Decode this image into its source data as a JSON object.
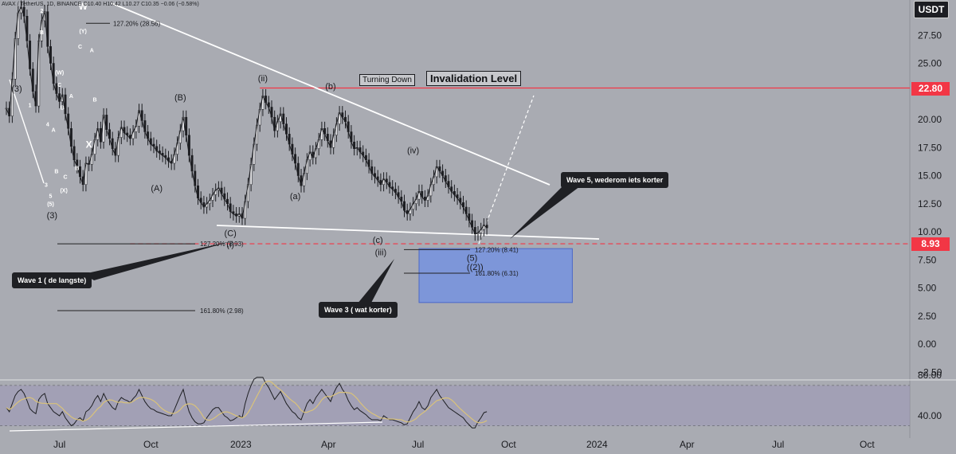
{
  "header": {
    "symbol_line": "AVAX / TetherUS, 1D, BINANCE  O10.40  H10.42  L10.27  C10.35  −0.06 (−0.58%)"
  },
  "currency_badge": "USDT",
  "colors": {
    "background": "#a9abb2",
    "price_line": "#1c1d21",
    "invalidation": "#f23645",
    "trendline": "#ffffff",
    "target_zone": "#6f8fe6",
    "rsi_line": "#1e1f23",
    "rsi_ma": "#d9c27a"
  },
  "annotations": {
    "turning_down": "Turning Down",
    "invalidation_level": "Invalidation Level",
    "wave1_callout": "Wave 1 ( de langste)",
    "wave3_callout": "Wave 3 ( wat korter)",
    "wave5_callout": "Wave 5, wederom iets korter",
    "fib_127_top": "127.20% (28.56)",
    "fib_127_left": "127.20% (8.93)",
    "fib_161_left": "161.80% (2.98)",
    "fib_127_right": "127.20% (8.41)",
    "fib_161_right": "161.80% (6.31)"
  },
  "price_badges": {
    "invalidation": "22.80",
    "target": "8.93"
  },
  "wave_labels": [
    {
      "text": "(3)",
      "t": 3.5,
      "p": 22.5
    },
    {
      "text": "W",
      "t": 26,
      "p": 29.8
    },
    {
      "text": "(Y)",
      "t": 26,
      "p": 27.7
    },
    {
      "text": "C",
      "t": 25,
      "p": 26.3
    },
    {
      "text": "A",
      "t": 29,
      "p": 26.0
    },
    {
      "text": "2",
      "t": 12,
      "p": 29.5
    },
    {
      "text": "B",
      "t": 12,
      "p": 27.6
    },
    {
      "text": "(W)",
      "t": 18,
      "p": 24.0
    },
    {
      "text": "C",
      "t": 18,
      "p": 22.9
    },
    {
      "text": "A",
      "t": 22,
      "p": 21.9
    },
    {
      "text": "B",
      "t": 30,
      "p": 21.6
    },
    {
      "text": "B",
      "t": 19,
      "p": 20.9
    },
    {
      "text": "1",
      "t": 8,
      "p": 21.1
    },
    {
      "text": "4",
      "t": 14,
      "p": 19.4
    },
    {
      "text": "A",
      "t": 16,
      "p": 18.9
    },
    {
      "text": "X",
      "t": 28,
      "p": 17.5
    },
    {
      "text": "B",
      "t": 24,
      "p": 15.5
    },
    {
      "text": "B",
      "t": 17,
      "p": 15.2
    },
    {
      "text": "C",
      "t": 20,
      "p": 14.7
    },
    {
      "text": "3",
      "t": 13.5,
      "p": 14.0
    },
    {
      "text": "(X)",
      "t": 19.5,
      "p": 13.5
    },
    {
      "text": "5",
      "t": 15,
      "p": 13.0
    },
    {
      "text": "(5)",
      "t": 15,
      "p": 12.3
    },
    {
      "text": "(3)",
      "t": 15.5,
      "p": 11.2
    },
    {
      "text": "(B)",
      "t": 59,
      "p": 21.7
    },
    {
      "text": "(A)",
      "t": 51,
      "p": 13.6
    },
    {
      "text": "(C)",
      "t": 76,
      "p": 9.6
    },
    {
      "text": "(i)",
      "t": 76,
      "p": 8.6
    },
    {
      "text": "(ii)",
      "t": 87,
      "p": 23.4
    },
    {
      "text": "(a)",
      "t": 98,
      "p": 12.9
    },
    {
      "text": "(b)",
      "t": 110,
      "p": 22.7
    },
    {
      "text": "(c)",
      "t": 126,
      "p": 9.0
    },
    {
      "text": "(iii)",
      "t": 127,
      "p": 7.9
    },
    {
      "text": "(iv)",
      "t": 138,
      "p": 17.0
    },
    {
      "text": "(5)",
      "t": 158,
      "p": 7.4
    },
    {
      "text": "((2))",
      "t": 159,
      "p": 6.6
    }
  ],
  "chart_data": [
    {
      "type": "candlestick",
      "title": "",
      "x_axis_ticks": [
        "Jul",
        "Oct",
        "2023",
        "Apr",
        "Jul",
        "Oct",
        "2024",
        "Apr",
        "Jul",
        "Oct"
      ],
      "y_axis_ticks": [
        "27.50",
        "25.00",
        "22.50",
        "20.00",
        "17.50",
        "15.00",
        "12.50",
        "10.00",
        "7.50",
        "5.00",
        "2.50",
        "0.00",
        "−2.50"
      ],
      "ylim": [
        -2.5,
        30
      ],
      "close": [
        21.0,
        20.3,
        23.6,
        27.2,
        29.5,
        30.0,
        29.2,
        27.0,
        24.5,
        22.5,
        21.2,
        27.0,
        28.8,
        29.6,
        26.5,
        25.0,
        23.2,
        22.3,
        21.6,
        22.2,
        20.5,
        19.2,
        17.6,
        16.4,
        15.8,
        14.9,
        14.2,
        16.1,
        16.0,
        16.9,
        18.2,
        19.2,
        18.0,
        20.4,
        19.1,
        18.3,
        17.4,
        16.8,
        18.4,
        19.3,
        18.8,
        18.6,
        18.3,
        18.9,
        19.4,
        20.8,
        19.9,
        18.9,
        18.3,
        17.8,
        17.6,
        17.2,
        17.0,
        16.8,
        16.6,
        16.3,
        16.1,
        16.9,
        17.9,
        19.0,
        20.2,
        18.6,
        16.8,
        15.4,
        14.1,
        13.0,
        12.6,
        12.2,
        12.5,
        12.8,
        13.3,
        13.7,
        13.9,
        13.4,
        12.9,
        12.5,
        11.8,
        11.6,
        11.4,
        11.6,
        11.2,
        12.7,
        14.2,
        16.0,
        17.8,
        19.5,
        20.9,
        22.1,
        21.5,
        21.1,
        20.2,
        19.0,
        19.8,
        20.5,
        19.6,
        18.7,
        17.8,
        16.9,
        16.1,
        15.0,
        14.1,
        15.2,
        16.4,
        17.1,
        16.6,
        17.4,
        18.2,
        19.2,
        18.7,
        18.1,
        17.5,
        18.6,
        19.6,
        20.6,
        20.2,
        19.8,
        18.9,
        18.0,
        17.4,
        17.5,
        17.1,
        16.8,
        16.4,
        15.8,
        15.2,
        14.9,
        14.6,
        14.2,
        14.7,
        14.4,
        14.0,
        13.8,
        13.5,
        13.1,
        12.7,
        11.9,
        11.6,
        12.0,
        12.5,
        12.9,
        13.6,
        13.1,
        12.8,
        13.2,
        14.2,
        14.9,
        15.8,
        15.4,
        15.0,
        14.5,
        14.0,
        13.6,
        13.3,
        13.0,
        12.6,
        12.2,
        11.6,
        11.0,
        10.4,
        9.8,
        9.9,
        10.2,
        10.6,
        10.35
      ],
      "close_start_period": "Jul 2022",
      "price_marks": [
        8.93,
        22.8
      ],
      "rsi": {
        "y_axis_ticks": [
          "80.00",
          "40.00"
        ],
        "ylim": [
          25,
          85
        ],
        "levels": [
          70,
          30
        ],
        "values": [
          48,
          44,
          52,
          60,
          64,
          66,
          62,
          55,
          47,
          44,
          42,
          56,
          60,
          62,
          52,
          48,
          44,
          42,
          40,
          44,
          38,
          34,
          30,
          32,
          36,
          38,
          35,
          44,
          46,
          50,
          56,
          60,
          54,
          62,
          56,
          52,
          48,
          46,
          54,
          58,
          56,
          55,
          53,
          57,
          60,
          66,
          60,
          54,
          50,
          47,
          46,
          44,
          43,
          42,
          41,
          40,
          40,
          46,
          53,
          60,
          66,
          54,
          44,
          38,
          34,
          32,
          32,
          33,
          38,
          42,
          46,
          48,
          48,
          44,
          40,
          38,
          35,
          36,
          38,
          40,
          38,
          52,
          62,
          70,
          76,
          78,
          78,
          78,
          72,
          68,
          62,
          56,
          60,
          64,
          58,
          52,
          48,
          44,
          42,
          38,
          36,
          44,
          52,
          56,
          52,
          58,
          62,
          66,
          62,
          58,
          54,
          62,
          68,
          72,
          66,
          62,
          55,
          50,
          46,
          48,
          45,
          43,
          41,
          38,
          36,
          36,
          36,
          35,
          40,
          38,
          36,
          36,
          35,
          34,
          33,
          31,
          32,
          38,
          44,
          48,
          54,
          48,
          46,
          50,
          58,
          62,
          66,
          60,
          56,
          52,
          48,
          46,
          44,
          42,
          40,
          38,
          34,
          31,
          28,
          28,
          34,
          38,
          43,
          44
        ]
      }
    }
  ]
}
